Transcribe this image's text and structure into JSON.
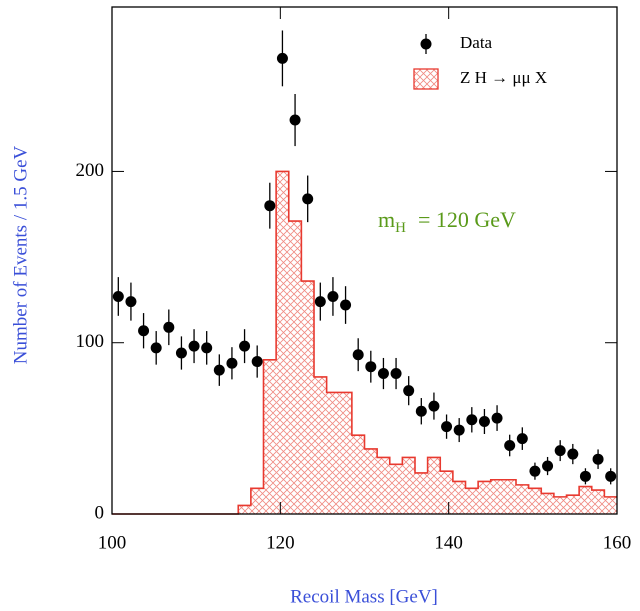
{
  "chart_data": {
    "type": "histogram",
    "x_label": "Recoil Mass  [GeV]",
    "y_label": "Number of Events / 1.5 GeV",
    "xlim": [
      100,
      160
    ],
    "xticks": [
      100,
      120,
      140,
      160
    ],
    "ylim": [
      0,
      296
    ],
    "yticks": [
      0,
      100,
      200
    ],
    "bins": [
      100,
      101.5,
      103,
      104.5,
      106,
      107.5,
      109,
      110.5,
      112,
      113.5,
      115,
      116.5,
      118,
      119.5,
      121,
      122.5,
      124,
      125.5,
      127,
      128.5,
      130,
      131.5,
      133,
      134.5,
      136,
      137.5,
      139,
      140.5,
      142,
      143.5,
      145,
      146.5,
      148,
      149.5,
      151,
      152.5,
      154,
      155.5,
      157,
      158.5,
      160
    ],
    "series": [
      {
        "name": "Data",
        "style": "points",
        "color": "#000000",
        "values": [
          127,
          124,
          107,
          97,
          109,
          94,
          98,
          97,
          84,
          88,
          98,
          89,
          180,
          266,
          230,
          184,
          124,
          127,
          122,
          93,
          86,
          82,
          82,
          72,
          60,
          63,
          51,
          49,
          55,
          54,
          56,
          40,
          44,
          25,
          28,
          37,
          35,
          22,
          32,
          22
        ],
        "errors": [
          11.3,
          11.1,
          10.3,
          9.8,
          10.4,
          9.7,
          9.9,
          9.8,
          9.2,
          9.4,
          9.9,
          9.4,
          13.4,
          16.3,
          15.2,
          13.6,
          11.1,
          11.3,
          11,
          9.6,
          9.3,
          9.1,
          9.1,
          8.5,
          7.7,
          7.9,
          7.1,
          7,
          7.4,
          7.3,
          7.5,
          6.3,
          6.6,
          5,
          5.3,
          6.1,
          5.9,
          4.7,
          5.7,
          4.7
        ]
      },
      {
        "name": "Z H → μμ X",
        "style": "bars",
        "color": "#e8392f",
        "values": [
          0,
          0,
          0,
          0,
          0,
          0,
          0,
          0,
          0,
          0,
          5,
          15,
          90,
          200,
          171,
          136,
          80,
          71,
          71,
          46,
          38,
          33,
          29,
          33,
          24,
          33,
          25,
          19,
          15,
          19,
          20,
          20,
          17,
          15,
          12,
          10,
          11,
          16,
          14,
          10
        ]
      }
    ],
    "annotation": {
      "symbol": "m",
      "subscript": "H",
      "text": "=  120  GeV"
    }
  }
}
